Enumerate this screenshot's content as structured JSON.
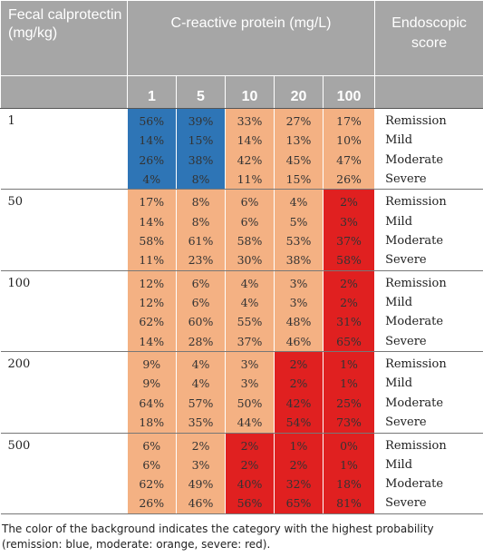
{
  "header": {
    "fecal_label": "Fecal calprotectin (mg/kg)",
    "crp_label": "C-reactive protein (mg/L)",
    "score_label": "Endoscopic score",
    "crp_levels": [
      "1",
      "5",
      "10",
      "20",
      "100"
    ]
  },
  "category_labels": [
    "Remission",
    "Mild",
    "Moderate",
    "Severe"
  ],
  "category_colors": {
    "remission": "#2e75b6",
    "moderate": "#f4b183",
    "severe": "#e02020"
  },
  "rows": [
    {
      "fecal": "1",
      "cols": [
        {
          "cat": "remission",
          "vals": [
            "56%",
            "14%",
            "26%",
            "4%"
          ]
        },
        {
          "cat": "remission",
          "vals": [
            "39%",
            "15%",
            "38%",
            "8%"
          ]
        },
        {
          "cat": "moderate",
          "vals": [
            "33%",
            "14%",
            "42%",
            "11%"
          ]
        },
        {
          "cat": "moderate",
          "vals": [
            "27%",
            "13%",
            "45%",
            "15%"
          ]
        },
        {
          "cat": "moderate",
          "vals": [
            "17%",
            "10%",
            "47%",
            "26%"
          ]
        }
      ]
    },
    {
      "fecal": "50",
      "cols": [
        {
          "cat": "moderate",
          "vals": [
            "17%",
            "14%",
            "58%",
            "11%"
          ]
        },
        {
          "cat": "moderate",
          "vals": [
            "8%",
            "8%",
            "61%",
            "23%"
          ]
        },
        {
          "cat": "moderate",
          "vals": [
            "6%",
            "6%",
            "58%",
            "30%"
          ]
        },
        {
          "cat": "moderate",
          "vals": [
            "4%",
            "5%",
            "53%",
            "38%"
          ]
        },
        {
          "cat": "severe",
          "vals": [
            "2%",
            "3%",
            "37%",
            "58%"
          ]
        }
      ]
    },
    {
      "fecal": "100",
      "cols": [
        {
          "cat": "moderate",
          "vals": [
            "12%",
            "12%",
            "62%",
            "14%"
          ]
        },
        {
          "cat": "moderate",
          "vals": [
            "6%",
            "6%",
            "60%",
            "28%"
          ]
        },
        {
          "cat": "moderate",
          "vals": [
            "4%",
            "4%",
            "55%",
            "37%"
          ]
        },
        {
          "cat": "moderate",
          "vals": [
            "3%",
            "3%",
            "48%",
            "46%"
          ]
        },
        {
          "cat": "severe",
          "vals": [
            "2%",
            "2%",
            "31%",
            "65%"
          ]
        }
      ]
    },
    {
      "fecal": "200",
      "cols": [
        {
          "cat": "moderate",
          "vals": [
            "9%",
            "9%",
            "64%",
            "18%"
          ]
        },
        {
          "cat": "moderate",
          "vals": [
            "4%",
            "4%",
            "57%",
            "35%"
          ]
        },
        {
          "cat": "moderate",
          "vals": [
            "3%",
            "3%",
            "50%",
            "44%"
          ]
        },
        {
          "cat": "severe",
          "vals": [
            "2%",
            "2%",
            "42%",
            "54%"
          ]
        },
        {
          "cat": "severe",
          "vals": [
            "1%",
            "1%",
            "25%",
            "73%"
          ]
        }
      ]
    },
    {
      "fecal": "500",
      "cols": [
        {
          "cat": "moderate",
          "vals": [
            "6%",
            "6%",
            "62%",
            "26%"
          ]
        },
        {
          "cat": "moderate",
          "vals": [
            "2%",
            "3%",
            "49%",
            "46%"
          ]
        },
        {
          "cat": "severe",
          "vals": [
            "2%",
            "2%",
            "40%",
            "56%"
          ]
        },
        {
          "cat": "severe",
          "vals": [
            "1%",
            "2%",
            "32%",
            "65%"
          ]
        },
        {
          "cat": "severe",
          "vals": [
            "0%",
            "1%",
            "18%",
            "81%"
          ]
        }
      ]
    }
  ],
  "footnote": "The color of the background indicates the category with the highest probability (remission: blue, moderate: orange, severe: red)."
}
